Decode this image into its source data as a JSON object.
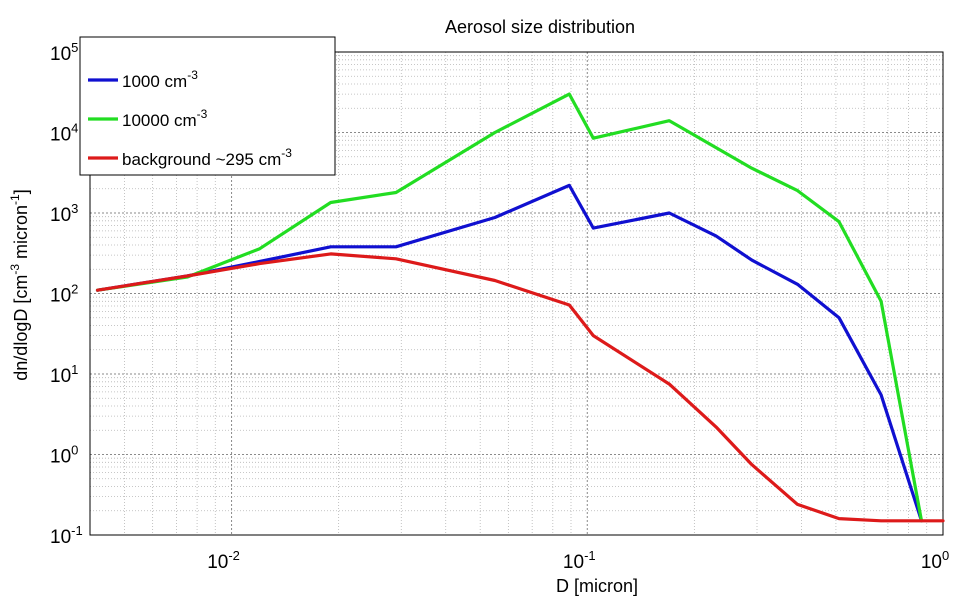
{
  "chart_data": {
    "type": "line",
    "title": "Aerosol size distribution",
    "xlabel": "D [micron]",
    "ylabel": {
      "parts": [
        {
          "text": "dn/dlogD [cm"
        },
        {
          "text": "-3",
          "sup": true
        },
        {
          "text": " micron"
        },
        {
          "text": "-1",
          "sup": true
        },
        {
          "text": "]"
        }
      ]
    },
    "xscale": "log",
    "yscale": "log",
    "xlim": [
      0.004,
      1
    ],
    "ylim": [
      0.1,
      100000
    ],
    "grid": true,
    "legend_position": "top-left",
    "x_ticks": [
      {
        "base": "10",
        "exp": "-2",
        "value": 0.01
      },
      {
        "base": "10",
        "exp": "-1",
        "value": 0.1
      },
      {
        "base": "10",
        "exp": "0",
        "value": 1
      }
    ],
    "y_ticks": [
      {
        "base": "10",
        "exp": "-1",
        "value": 0.1
      },
      {
        "base": "10",
        "exp": "0",
        "value": 1
      },
      {
        "base": "10",
        "exp": "1",
        "value": 10
      },
      {
        "base": "10",
        "exp": "2",
        "value": 100
      },
      {
        "base": "10",
        "exp": "3",
        "value": 1000
      },
      {
        "base": "10",
        "exp": "4",
        "value": 10000
      },
      {
        "base": "10",
        "exp": "5",
        "value": 100000
      }
    ],
    "series": [
      {
        "name": "1000 cm-3",
        "legend_parts": [
          {
            "text": "1000 cm"
          },
          {
            "text": "-3",
            "sup": true
          }
        ],
        "color": "#1010d0",
        "x": [
          0.0042,
          0.0075,
          0.012,
          0.019,
          0.029,
          0.055,
          0.089,
          0.104,
          0.17,
          0.23,
          0.29,
          0.39,
          0.51,
          0.67,
          0.87
        ],
        "y": [
          110,
          165,
          250,
          380,
          380,
          880,
          2200,
          650,
          1000,
          520,
          260,
          130,
          50,
          5.5,
          0.15
        ]
      },
      {
        "name": "10000 cm-3",
        "legend_parts": [
          {
            "text": "10000 cm"
          },
          {
            "text": "-3",
            "sup": true
          }
        ],
        "color": "#22dd22",
        "x": [
          0.0042,
          0.0075,
          0.012,
          0.019,
          0.029,
          0.055,
          0.089,
          0.104,
          0.17,
          0.23,
          0.29,
          0.39,
          0.51,
          0.67,
          0.87
        ],
        "y": [
          110,
          160,
          360,
          1350,
          1800,
          10000,
          30000,
          8500,
          14000,
          6500,
          3600,
          1900,
          780,
          80,
          0.15
        ]
      },
      {
        "name": "background ~295 cm-3",
        "legend_parts": [
          {
            "text": "background ~295 cm"
          },
          {
            "text": "-3",
            "sup": true
          }
        ],
        "color": "#dd1a1a",
        "x": [
          0.0042,
          0.0075,
          0.012,
          0.019,
          0.029,
          0.055,
          0.089,
          0.104,
          0.17,
          0.23,
          0.29,
          0.39,
          0.51,
          0.67,
          0.87,
          1.0
        ],
        "y": [
          110,
          165,
          235,
          310,
          270,
          145,
          72,
          30,
          7.5,
          2.2,
          0.75,
          0.24,
          0.16,
          0.15,
          0.15,
          0.15
        ]
      }
    ]
  }
}
